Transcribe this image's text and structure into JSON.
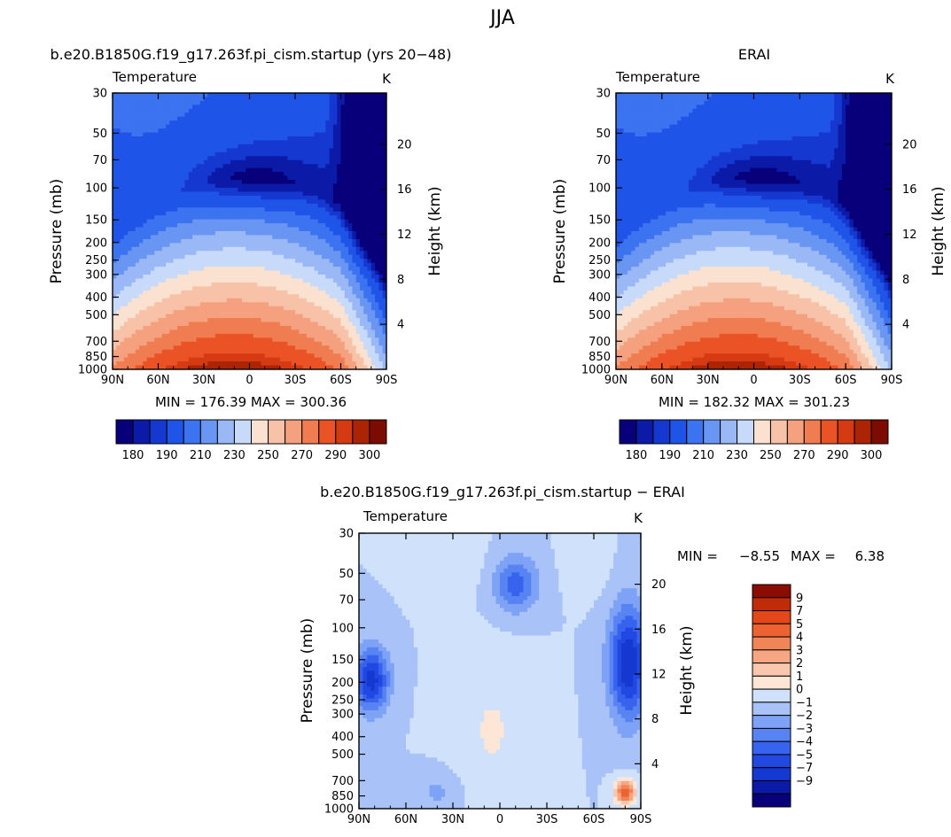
{
  "figure_title": "JJA",
  "colors": {
    "base_palette": [
      "#08007a",
      "#0c1aa8",
      "#1538d0",
      "#1f54e8",
      "#3b73f0",
      "#6995f3",
      "#9ab8f6",
      "#c7dafa",
      "#fbe1d0",
      "#f8c2a8",
      "#f5a07e",
      "#f07c52",
      "#ea5325",
      "#d53b13",
      "#ab2505",
      "#7c0c02"
    ],
    "diff_palette": [
      "#08007a",
      "#0c1aa8",
      "#1538d0",
      "#2149e2",
      "#3763ee",
      "#5884f3",
      "#7ea3f6",
      "#a9c3f8",
      "#d0e2fb",
      "#fde6d6",
      "#f9c7ad",
      "#f6a682",
      "#f18558",
      "#ec6331",
      "#e4471a",
      "#c02b08",
      "#8a0c02"
    ]
  },
  "panels": {
    "model": {
      "title": "b.e20.B1850G.f19_g17.263f.pi_cism.startup (yrs 20−48)",
      "variable": "Temperature",
      "units": "K",
      "minmax": "MIN = 176.39   MAX = 300.36"
    },
    "obs": {
      "title": "ERAI",
      "variable": "Temperature",
      "units": "K",
      "minmax": "MIN = 182.32   MAX = 301.23"
    },
    "diff": {
      "title": "b.e20.B1850G.f19_g17.263f.pi_cism.startup − ERAI",
      "variable": "Temperature",
      "units": "K",
      "min_label": "MIN =",
      "min_value": "−8.55",
      "max_label": "MAX =",
      "max_value": "6.38"
    }
  },
  "chart_data": [
    {
      "type": "heatmap",
      "panel": "model",
      "title": "b.e20.B1850G.f19_g17.263f.pi_cism.startup (yrs 20−48)",
      "xlabel": "",
      "ylabel": "Pressure  (mb)",
      "y2label": "Height  (km)",
      "x_ticks": [
        "90N",
        "60N",
        "30N",
        "0",
        "30S",
        "60S",
        "90S"
      ],
      "x_range": [
        90,
        -90
      ],
      "y_ticks": [
        "30",
        "50",
        "70",
        "100",
        "150",
        "200",
        "250",
        "300",
        "400",
        "500",
        "700",
        "850",
        "1000"
      ],
      "y_range_mb": [
        1000,
        30
      ],
      "y_scale": "log",
      "y2_ticks": [
        "4",
        "8",
        "12",
        "16",
        "20"
      ],
      "colorbar_labels": [
        "180",
        "190",
        "210",
        "230",
        "250",
        "270",
        "290",
        "300"
      ],
      "levels": [
        180,
        185,
        190,
        200,
        210,
        220,
        230,
        240,
        250,
        260,
        270,
        280,
        290,
        295,
        300
      ],
      "z_min": 176.39,
      "z_max": 300.36
    },
    {
      "type": "heatmap",
      "panel": "obs",
      "title": "ERAI",
      "xlabel": "",
      "ylabel": "Pressure  (mb)",
      "y2label": "Height  (km)",
      "x_ticks": [
        "90N",
        "60N",
        "30N",
        "0",
        "30S",
        "60S",
        "90S"
      ],
      "x_range": [
        90,
        -90
      ],
      "y_ticks": [
        "30",
        "50",
        "70",
        "100",
        "150",
        "200",
        "250",
        "300",
        "400",
        "500",
        "700",
        "850",
        "1000"
      ],
      "y_range_mb": [
        1000,
        30
      ],
      "y_scale": "log",
      "y2_ticks": [
        "4",
        "8",
        "12",
        "16",
        "20"
      ],
      "colorbar_labels": [
        "180",
        "190",
        "210",
        "230",
        "250",
        "270",
        "290",
        "300"
      ],
      "levels": [
        180,
        185,
        190,
        200,
        210,
        220,
        230,
        240,
        250,
        260,
        270,
        280,
        290,
        295,
        300
      ],
      "z_min": 182.32,
      "z_max": 301.23
    },
    {
      "type": "heatmap",
      "panel": "diff",
      "title": "b.e20.B1850G.f19_g17.263f.pi_cism.startup − ERAI",
      "xlabel": "",
      "ylabel": "Pressure  (mb)",
      "y2label": "Height  (km)",
      "x_ticks": [
        "90N",
        "60N",
        "30N",
        "0",
        "30S",
        "60S",
        "90S"
      ],
      "x_range": [
        90,
        -90
      ],
      "y_ticks": [
        "30",
        "50",
        "70",
        "100",
        "150",
        "200",
        "250",
        "300",
        "400",
        "500",
        "700",
        "850",
        "1000"
      ],
      "y_range_mb": [
        1000,
        30
      ],
      "y_scale": "log",
      "y2_ticks": [
        "4",
        "8",
        "12",
        "16",
        "20"
      ],
      "colorbar_labels": [
        "9",
        "7",
        "5",
        "4",
        "3",
        "2",
        "1",
        "0",
        "−1",
        "−2",
        "−3",
        "−4",
        "−5",
        "−7",
        "−9"
      ],
      "levels": [
        -9,
        -7,
        -5,
        -4,
        -3,
        -2,
        -1,
        0,
        1,
        2,
        3,
        4,
        5,
        7,
        9
      ],
      "z_min": -8.55,
      "z_max": 6.38
    }
  ]
}
